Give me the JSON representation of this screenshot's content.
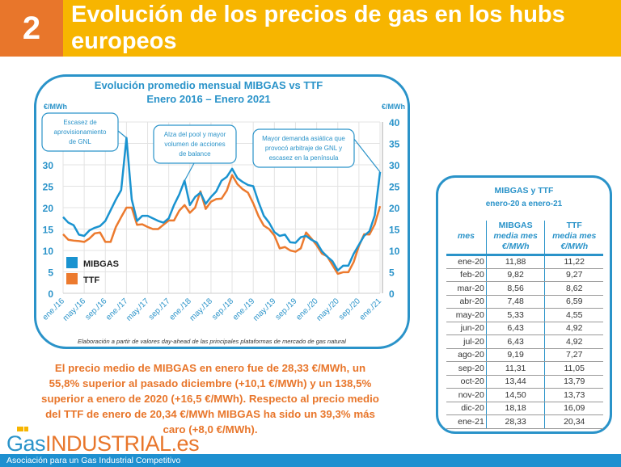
{
  "header": {
    "number": "2",
    "title": "Evolución de los precios de gas en los hubs europeos"
  },
  "chart_data": {
    "type": "line",
    "title": "Evolución promedio mensual MIBGAS vs TTF",
    "subtitle": "Enero 2016 – Enero 2021",
    "ylabel_left": "€/MWh",
    "ylabel_right": "€/MWh",
    "ylim": [
      0,
      40
    ],
    "yticks_left": [
      0,
      5,
      10,
      15,
      20,
      25,
      30
    ],
    "yticks_right": [
      0,
      5,
      10,
      15,
      20,
      25,
      30,
      35,
      40
    ],
    "xtick_labels": [
      "ene./16",
      "may./16",
      "sep./16",
      "ene./17",
      "may./17",
      "sep./17",
      "ene./18",
      "may./18",
      "sep./18",
      "ene./19",
      "may./19",
      "sep./19",
      "ene./20",
      "may./20",
      "sep./20",
      "ene./21"
    ],
    "x_start": "2016-01",
    "x_end": "2021-01",
    "grid": true,
    "legend": "bottom-left",
    "series": [
      {
        "name": "MIBGAS",
        "color": "#1a93d0",
        "values": [
          17.8,
          16.5,
          15.9,
          13.7,
          13.4,
          14.7,
          15.3,
          15.7,
          16.9,
          19.4,
          21.9,
          24.1,
          36.3,
          21.9,
          16.9,
          18.1,
          18.1,
          17.5,
          16.9,
          16.5,
          17.5,
          20.6,
          23.1,
          26.3,
          20.6,
          22.5,
          23.5,
          20.9,
          22.5,
          23.8,
          26.3,
          27.2,
          29.1,
          26.9,
          26.0,
          25.3,
          25.0,
          21.3,
          18.1,
          16.5,
          14.3,
          13.4,
          13.7,
          11.9,
          11.8,
          13.1,
          13.4,
          12.5,
          11.88,
          9.82,
          8.56,
          7.48,
          5.33,
          6.43,
          6.43,
          9.19,
          11.31,
          13.44,
          14.5,
          18.18,
          28.33
        ]
      },
      {
        "name": "TTF",
        "color": "#ec7a2e",
        "values": [
          13.8,
          12.5,
          12.3,
          12.2,
          12.0,
          12.8,
          14.0,
          14.2,
          12.0,
          12.0,
          15.5,
          17.8,
          20.0,
          20.0,
          16.0,
          16.1,
          15.5,
          15.0,
          15.0,
          16.0,
          17.0,
          17.0,
          19.3,
          20.6,
          18.8,
          20.0,
          23.8,
          19.7,
          21.4,
          22.0,
          22.1,
          24.0,
          27.6,
          25.5,
          24.3,
          23.5,
          21.0,
          18.0,
          15.8,
          15.0,
          13.5,
          10.5,
          10.8,
          10.0,
          9.7,
          10.5,
          14.2,
          12.8,
          11.22,
          9.27,
          8.62,
          6.59,
          4.55,
          4.92,
          4.92,
          7.27,
          11.05,
          13.79,
          13.73,
          16.09,
          20.34
        ]
      }
    ],
    "annotations": [
      {
        "lines": [
          "Escasez de",
          "aprovisionamiento",
          "de GNL"
        ],
        "target": "ene./17"
      },
      {
        "lines": [
          "Alza del pool y mayor",
          "volumen de acciones",
          "de balance"
        ],
        "target": "dic./17"
      },
      {
        "lines": [
          "Mayor demanda asiática que",
          "provocó arbitraje de GNL y",
          "escasez en la península"
        ],
        "target": "ene./21"
      }
    ],
    "source_note": "Elaboración a partir de valores day-ahead de las principales plataformas de mercado de gas natural"
  },
  "note": "El precio medio de MIBGAS en enero fue de 28,33 €/MWh, un 55,8% superior al pasado diciembre (+10,1 €/MWh) y un 138,5% superior a enero de 2020 (+16,5 €/MWh). Respecto al precio medio del TTF de enero de 20,34 €/MWh MIBGAS ha sido un 39,3% más caro (+8,0 €/MWh).",
  "table": {
    "title": "MIBGAS y TTF",
    "subtitle": "enero-20 a enero-21",
    "headers": {
      "mes": "mes",
      "mibgas": "MIBGAS",
      "ttf": "TTF",
      "media": "media mes",
      "unit": "€/MWh"
    },
    "rows": [
      [
        "ene-20",
        "11,88",
        "11,22"
      ],
      [
        "feb-20",
        "9,82",
        "9,27"
      ],
      [
        "mar-20",
        "8,56",
        "8,62"
      ],
      [
        "abr-20",
        "7,48",
        "6,59"
      ],
      [
        "may-20",
        "5,33",
        "4,55"
      ],
      [
        "jun-20",
        "6,43",
        "4,92"
      ],
      [
        "jul-20",
        "6,43",
        "4,92"
      ],
      [
        "ago-20",
        "9,19",
        "7,27"
      ],
      [
        "sep-20",
        "11,31",
        "11,05"
      ],
      [
        "oct-20",
        "13,44",
        "13,79"
      ],
      [
        "nov-20",
        "14,50",
        "13,73"
      ],
      [
        "dic-20",
        "18,18",
        "16,09"
      ],
      [
        "ene-21",
        "28,33",
        "20,34"
      ]
    ]
  },
  "logo": {
    "gas": "Gas",
    "industrial": "INDUSTRIAL.es"
  },
  "footer": "Asociación para un Gas Industrial Competitivo"
}
